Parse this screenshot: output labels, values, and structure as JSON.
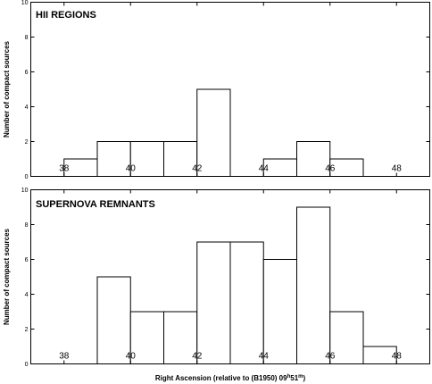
{
  "chart_data": [
    {
      "type": "bar",
      "title": "HII REGIONS",
      "ylabel": "Number of compact sources",
      "xlabel": "",
      "xlim": [
        37,
        49
      ],
      "ylim": [
        0,
        10
      ],
      "bin_width": 1,
      "x": [
        38,
        39,
        40,
        41,
        42,
        43,
        44,
        45,
        46
      ],
      "values": [
        1,
        2,
        2,
        2,
        5,
        0,
        1,
        2,
        1
      ],
      "xticks": [
        "38",
        "40",
        "42",
        "44",
        "46",
        "48"
      ],
      "xtick_values": [
        38,
        40,
        42,
        44,
        46,
        48
      ],
      "yticks": [
        "0",
        "2",
        "4",
        "6",
        "8",
        "10"
      ],
      "ytick_values": [
        0,
        2,
        4,
        6,
        8,
        10
      ],
      "grid": false
    },
    {
      "type": "bar",
      "title": "SUPERNOVA REMNANTS",
      "ylabel": "Number of compact sources",
      "xlabel": "Right Ascension (relative to (B1950) 09h51m)",
      "xlabel_parts": [
        "Right Ascension (relative to (B1950) 09",
        "h",
        "51",
        "m",
        ")"
      ],
      "xlim": [
        37,
        49
      ],
      "ylim": [
        0,
        10
      ],
      "bin_width": 1,
      "x": [
        39,
        40,
        41,
        42,
        43,
        44,
        45,
        46,
        47
      ],
      "values": [
        5,
        3,
        3,
        7,
        7,
        6,
        9,
        3,
        1
      ],
      "xticks": [
        "38",
        "40",
        "42",
        "44",
        "46",
        "48"
      ],
      "xtick_values": [
        38,
        40,
        42,
        44,
        46,
        48
      ],
      "yticks": [
        "0",
        "2",
        "4",
        "6",
        "8",
        "10"
      ],
      "ytick_values": [
        0,
        2,
        4,
        6,
        8,
        10
      ],
      "grid": false
    }
  ]
}
